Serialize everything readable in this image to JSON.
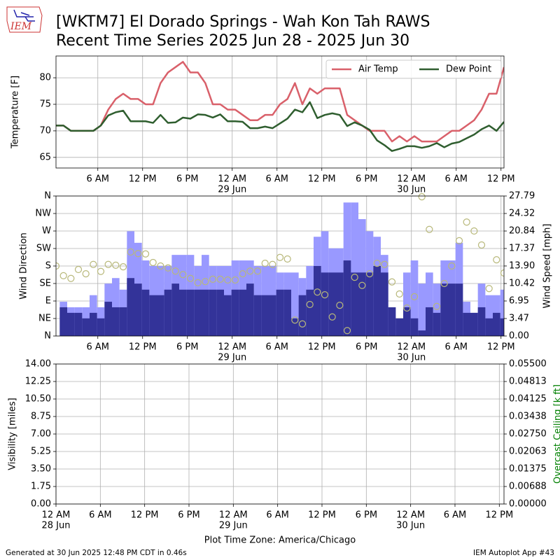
{
  "header": {
    "logo": "IEM",
    "title_line1": "[WKTM7] El Dorado Springs - Wah Kon Tah RAWS",
    "title_line2": "Recent Time Series 2025 Jun 28 - 2025 Jun 30"
  },
  "chart_data": [
    {
      "type": "line",
      "ylabel": "Temperature [F]",
      "grid": true,
      "legend": "upper right",
      "xlim": [
        "2025-06-28T00:24",
        "2025-06-30T12:24"
      ],
      "xticks": [
        {
          "value": "2025-06-28T06:00",
          "label": "6 AM"
        },
        {
          "value": "2025-06-28T12:00",
          "label": "12 PM"
        },
        {
          "value": "2025-06-28T18:00",
          "label": "6 PM"
        },
        {
          "value": "2025-06-29T00:00",
          "label": "12 AM"
        },
        {
          "value": "2025-06-29T06:00",
          "label": "6 AM"
        },
        {
          "value": "2025-06-29T12:00",
          "label": "12 PM"
        },
        {
          "value": "2025-06-29T18:00",
          "label": "6 PM"
        },
        {
          "value": "2025-06-30T00:00",
          "label": "12 AM"
        },
        {
          "value": "2025-06-30T06:00",
          "label": "6 AM"
        },
        {
          "value": "2025-06-30T12:00",
          "label": "12 PM"
        }
      ],
      "date_labels": [
        {
          "value": "2025-06-29T00:00",
          "label": "29 Jun"
        },
        {
          "value": "2025-06-30T00:00",
          "label": "30 Jun"
        }
      ],
      "ylim": [
        63,
        84.1
      ],
      "yticks": [
        65,
        70,
        75,
        80
      ],
      "x": [
        "2025-06-28T00:24",
        "2025-06-28T01:24",
        "2025-06-28T02:24",
        "2025-06-28T03:24",
        "2025-06-28T04:24",
        "2025-06-28T05:24",
        "2025-06-28T06:24",
        "2025-06-28T07:24",
        "2025-06-28T08:24",
        "2025-06-28T09:24",
        "2025-06-28T10:24",
        "2025-06-28T11:24",
        "2025-06-28T12:24",
        "2025-06-28T13:24",
        "2025-06-28T14:24",
        "2025-06-28T15:24",
        "2025-06-28T16:24",
        "2025-06-28T17:24",
        "2025-06-28T18:24",
        "2025-06-28T19:24",
        "2025-06-28T20:24",
        "2025-06-28T21:24",
        "2025-06-28T22:24",
        "2025-06-28T23:24",
        "2025-06-29T00:24",
        "2025-06-29T01:24",
        "2025-06-29T02:24",
        "2025-06-29T03:24",
        "2025-06-29T04:24",
        "2025-06-29T05:24",
        "2025-06-29T06:24",
        "2025-06-29T07:24",
        "2025-06-29T08:24",
        "2025-06-29T09:24",
        "2025-06-29T10:24",
        "2025-06-29T11:24",
        "2025-06-29T12:24",
        "2025-06-29T13:24",
        "2025-06-29T14:24",
        "2025-06-29T15:24",
        "2025-06-29T16:24",
        "2025-06-29T17:24",
        "2025-06-29T18:24",
        "2025-06-29T19:24",
        "2025-06-29T20:24",
        "2025-06-29T21:24",
        "2025-06-29T22:24",
        "2025-06-29T23:24",
        "2025-06-30T00:24",
        "2025-06-30T01:24",
        "2025-06-30T02:24",
        "2025-06-30T03:24",
        "2025-06-30T04:24",
        "2025-06-30T05:24",
        "2025-06-30T06:24",
        "2025-06-30T07:24",
        "2025-06-30T08:24",
        "2025-06-30T09:24",
        "2025-06-30T10:24",
        "2025-06-30T11:24",
        "2025-06-30T12:24"
      ],
      "series": [
        {
          "name": "Air Temp",
          "color": "#d9606a",
          "values": [
            71,
            71,
            70,
            70,
            70,
            70,
            71,
            74,
            76,
            77,
            76,
            76,
            75,
            75,
            79,
            81,
            82,
            83,
            81,
            81,
            79,
            75,
            75,
            74,
            74,
            73,
            72,
            72,
            73,
            73,
            75,
            76,
            79,
            75,
            78,
            77,
            78,
            78,
            78,
            73,
            72,
            71,
            70,
            70,
            70,
            68,
            69,
            68,
            69,
            68,
            68,
            68,
            69,
            70,
            70,
            71,
            72,
            74,
            77,
            77,
            82
          ]
        },
        {
          "name": "Dew Point",
          "color": "#2f5e2f",
          "values": [
            71,
            71,
            70,
            70,
            70,
            70,
            71,
            72.9,
            73.5,
            73.8,
            71.8,
            71.8,
            71.8,
            71.5,
            73,
            71.5,
            71.6,
            72.5,
            72.3,
            73.1,
            73,
            72.5,
            73.1,
            71.8,
            71.8,
            71.7,
            70.5,
            70.5,
            70.8,
            70.5,
            71.4,
            72.3,
            74,
            73.5,
            75.4,
            72.4,
            73,
            73.3,
            73,
            70.9,
            71.6,
            71,
            70.2,
            68.2,
            67.3,
            66.2,
            66.6,
            67.1,
            67.1,
            66.8,
            67.1,
            67.7,
            66.9,
            67.6,
            67.9,
            68.6,
            69.3,
            70.3,
            71,
            70,
            71.7
          ]
        }
      ]
    },
    {
      "type": "bar",
      "ylabel": "Wind Direction",
      "y2label": "Wind Speed [mph]",
      "grid": true,
      "xlim": [
        "2025-06-28T00:24",
        "2025-06-30T12:24"
      ],
      "xticks": [
        {
          "value": "2025-06-28T06:00",
          "label": "6 AM"
        },
        {
          "value": "2025-06-28T12:00",
          "label": "12 PM"
        },
        {
          "value": "2025-06-28T18:00",
          "label": "6 PM"
        },
        {
          "value": "2025-06-29T00:00",
          "label": "12 AM"
        },
        {
          "value": "2025-06-29T06:00",
          "label": "6 AM"
        },
        {
          "value": "2025-06-29T12:00",
          "label": "12 PM"
        },
        {
          "value": "2025-06-29T18:00",
          "label": "6 PM"
        },
        {
          "value": "2025-06-30T00:00",
          "label": "12 AM"
        },
        {
          "value": "2025-06-30T06:00",
          "label": "6 AM"
        },
        {
          "value": "2025-06-30T12:00",
          "label": "12 PM"
        }
      ],
      "date_labels": [
        {
          "value": "2025-06-29T00:00",
          "label": "29 Jun"
        },
        {
          "value": "2025-06-30T00:00",
          "label": "30 Jun"
        }
      ],
      "ylim": [
        0,
        360
      ],
      "yticks": [
        {
          "value": 0,
          "label": "N"
        },
        {
          "value": 45,
          "label": "NE"
        },
        {
          "value": 90,
          "label": "E"
        },
        {
          "value": 135,
          "label": "SE"
        },
        {
          "value": 180,
          "label": "S"
        },
        {
          "value": 225,
          "label": "SW"
        },
        {
          "value": 270,
          "label": "W"
        },
        {
          "value": 315,
          "label": "NW"
        },
        {
          "value": 360,
          "label": "N"
        }
      ],
      "y2lim": [
        0,
        27.79
      ],
      "y2ticks": [
        {
          "value": 0,
          "label": "0.00"
        },
        3.47,
        6.95,
        10.42,
        {
          "value": 13.9,
          "label": "13.90"
        },
        17.37,
        20.84,
        24.32,
        27.79
      ],
      "x": [
        "2025-06-28T00:24",
        "2025-06-28T01:24",
        "2025-06-28T02:24",
        "2025-06-28T03:24",
        "2025-06-28T04:24",
        "2025-06-28T05:24",
        "2025-06-28T06:24",
        "2025-06-28T07:24",
        "2025-06-28T08:24",
        "2025-06-28T09:24",
        "2025-06-28T10:24",
        "2025-06-28T11:24",
        "2025-06-28T12:24",
        "2025-06-28T13:24",
        "2025-06-28T14:24",
        "2025-06-28T15:24",
        "2025-06-28T16:24",
        "2025-06-28T17:24",
        "2025-06-28T18:24",
        "2025-06-28T19:24",
        "2025-06-28T20:24",
        "2025-06-28T21:24",
        "2025-06-28T22:24",
        "2025-06-28T23:24",
        "2025-06-29T00:24",
        "2025-06-29T01:24",
        "2025-06-29T02:24",
        "2025-06-29T03:24",
        "2025-06-29T04:24",
        "2025-06-29T05:24",
        "2025-06-29T06:24",
        "2025-06-29T07:24",
        "2025-06-29T08:24",
        "2025-06-29T09:24",
        "2025-06-29T10:24",
        "2025-06-29T11:24",
        "2025-06-29T12:24",
        "2025-06-29T13:24",
        "2025-06-29T14:24",
        "2025-06-29T15:24",
        "2025-06-29T16:24",
        "2025-06-29T17:24",
        "2025-06-29T18:24",
        "2025-06-29T19:24",
        "2025-06-29T20:24",
        "2025-06-29T21:24",
        "2025-06-29T22:24",
        "2025-06-29T23:24",
        "2025-06-30T00:24",
        "2025-06-30T01:24",
        "2025-06-30T02:24",
        "2025-06-30T03:24",
        "2025-06-30T04:24",
        "2025-06-30T05:24",
        "2025-06-30T06:24",
        "2025-06-30T07:24",
        "2025-06-30T08:24",
        "2025-06-30T09:24",
        "2025-06-30T10:24",
        "2025-06-30T11:24",
        "2025-06-30T12:24"
      ],
      "series": [
        {
          "type": "bar",
          "axis": "y2",
          "color": "#9999ff",
          "values": [
            null,
            6.8,
            5.7,
            5.7,
            5.7,
            8.1,
            5.7,
            10.4,
            11.5,
            9.2,
            20.8,
            18.5,
            15.0,
            13.9,
            13.9,
            13.9,
            16.1,
            16.1,
            16.1,
            13.9,
            16.1,
            13.9,
            13.9,
            13.9,
            15.0,
            15.0,
            15.0,
            13.9,
            13.9,
            13.9,
            12.6,
            12.6,
            12.6,
            11.5,
            13.9,
            19.7,
            20.8,
            17.4,
            17.4,
            26.5,
            26.5,
            23.2,
            20.8,
            19.7,
            16.1,
            5.7,
            2.2,
            12.6,
            15.0,
            10.4,
            12.6,
            10.4,
            15.0,
            15.0,
            18.5,
            6.8,
            4.6,
            10.4,
            8.1,
            8.1,
            9.2
          ]
        },
        {
          "type": "bar",
          "axis": "y2",
          "color": "#333399",
          "values": [
            null,
            5.7,
            4.6,
            4.6,
            3.5,
            4.6,
            3.5,
            6.8,
            5.7,
            5.7,
            11.5,
            10.4,
            9.2,
            8.1,
            8.1,
            9.2,
            10.4,
            9.2,
            9.2,
            9.2,
            9.2,
            9.2,
            9.2,
            8.1,
            9.2,
            9.2,
            10.4,
            8.1,
            8.1,
            8.1,
            9.2,
            9.2,
            3.5,
            8.1,
            9.2,
            13.9,
            12.6,
            12.6,
            12.6,
            15.0,
            12.6,
            12.6,
            12.6,
            13.9,
            12.6,
            5.7,
            3.5,
            5.7,
            3.5,
            1.1,
            5.7,
            4.6,
            10.4,
            10.4,
            10.4,
            4.6,
            4.6,
            5.7,
            3.5,
            4.6,
            3.5
          ]
        },
        {
          "type": "scatter",
          "color": "#b8b87a",
          "values": [
            180,
            155,
            148,
            171,
            160,
            184,
            166,
            184,
            182,
            178,
            216,
            212,
            211,
            189,
            180,
            175,
            167,
            158,
            148,
            137,
            140,
            146,
            146,
            144,
            144,
            160,
            167,
            167,
            187,
            184,
            202,
            198,
            41,
            31,
            81,
            113,
            106,
            49,
            79,
            14,
            151,
            130,
            160,
            187,
            184,
            139,
            108,
            72,
            101,
            358,
            274,
            76,
            135,
            180,
            245,
            293,
            270,
            234,
            122,
            196,
            162
          ]
        }
      ]
    },
    {
      "type": "line",
      "ylabel": "Visibility [miles]",
      "y2label": "Overcast Ceiling [k ft]",
      "y2label_color": "#008000",
      "grid": true,
      "x_label": "Plot Time Zone: America/Chicago",
      "xlim": [
        "2025-06-28T00:00",
        "2025-06-30T12:38"
      ],
      "xticks": [
        {
          "value": "2025-06-28T00:00",
          "label": "12 AM"
        },
        {
          "value": "2025-06-28T06:00",
          "label": "6 AM"
        },
        {
          "value": "2025-06-28T12:00",
          "label": "12 PM"
        },
        {
          "value": "2025-06-28T18:00",
          "label": "6 PM"
        },
        {
          "value": "2025-06-29T00:00",
          "label": "12 AM"
        },
        {
          "value": "2025-06-29T06:00",
          "label": "6 AM"
        },
        {
          "value": "2025-06-29T12:00",
          "label": "12 PM"
        },
        {
          "value": "2025-06-29T18:00",
          "label": "6 PM"
        },
        {
          "value": "2025-06-30T00:00",
          "label": "12 AM"
        },
        {
          "value": "2025-06-30T06:00",
          "label": "6 AM"
        },
        {
          "value": "2025-06-30T12:00",
          "label": "12 PM"
        }
      ],
      "date_labels": [
        {
          "value": "2025-06-28T00:00",
          "label": "28 Jun"
        },
        {
          "value": "2025-06-29T00:00",
          "label": "29 Jun"
        },
        {
          "value": "2025-06-30T00:00",
          "label": "30 Jun"
        }
      ],
      "ylim": [
        0,
        14
      ],
      "yticks": [
        {
          "value": 0,
          "label": "0.00"
        },
        1.75,
        {
          "value": 3.5,
          "label": "3.50"
        },
        5.25,
        {
          "value": 7,
          "label": "7.00"
        },
        8.75,
        {
          "value": 10.5,
          "label": "10.50"
        },
        12.25,
        {
          "value": 14,
          "label": "14.00"
        }
      ],
      "y2lim": [
        0,
        0.055
      ],
      "y2ticks": [
        {
          "value": 0,
          "label": "0.00000"
        },
        {
          "value": 0.006875,
          "label": "0.00688"
        },
        0.01375,
        {
          "value": 0.020625,
          "label": "0.02063"
        },
        {
          "value": 0.0275,
          "label": "0.02750"
        },
        {
          "value": 0.034375,
          "label": "0.03438"
        },
        0.04125,
        {
          "value": 0.048125,
          "label": "0.04813"
        },
        {
          "value": 0.055,
          "label": "0.05500"
        }
      ]
    }
  ],
  "footer": {
    "left": "Generated at 30 Jun 2025 12:48 PM CDT in 0.46s",
    "right": "IEM Autoplot App #43"
  }
}
